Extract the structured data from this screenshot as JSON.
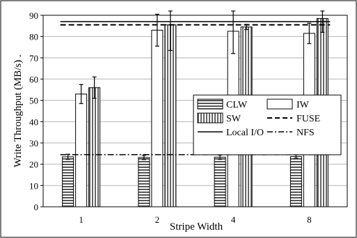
{
  "chart_data": {
    "type": "bar",
    "title": "",
    "xlabel": "Stripe Width",
    "ylabel": "Write Throughput (MB/s) .",
    "categories": [
      "1",
      "2",
      "4",
      "8"
    ],
    "ylim": [
      0,
      90
    ],
    "yticks": [
      "0",
      "10",
      "20",
      "30",
      "40",
      "50",
      "60",
      "70",
      "80",
      "90"
    ],
    "grid": true,
    "legend_position": "right-middle",
    "series": [
      {
        "name": "CLW",
        "pattern": "horizontal-stripes",
        "values": [
          23.5,
          23.2,
          23.3,
          23.6
        ],
        "err": [
          1.2,
          1.0,
          1.0,
          0.8
        ]
      },
      {
        "name": "IW",
        "pattern": "white",
        "values": [
          53,
          83,
          82.5,
          81.5
        ],
        "err": [
          4.5,
          7.5,
          10.5,
          4.8
        ]
      },
      {
        "name": "SW",
        "pattern": "vertical-stripes",
        "values": [
          56,
          85.5,
          84.5,
          88.5
        ],
        "err": [
          5,
          12,
          1.2,
          6.5
        ]
      }
    ],
    "reference_lines": [
      {
        "name": "FUSE",
        "style": "dashed",
        "value": 85.5
      },
      {
        "name": "Local I/O",
        "style": "solid",
        "value": 87
      },
      {
        "name": "NFS",
        "style": "dash-dot",
        "value": 24.5
      }
    ],
    "legend": [
      "CLW",
      "IW",
      "SW",
      "FUSE",
      "Local I/O",
      "NFS"
    ]
  }
}
